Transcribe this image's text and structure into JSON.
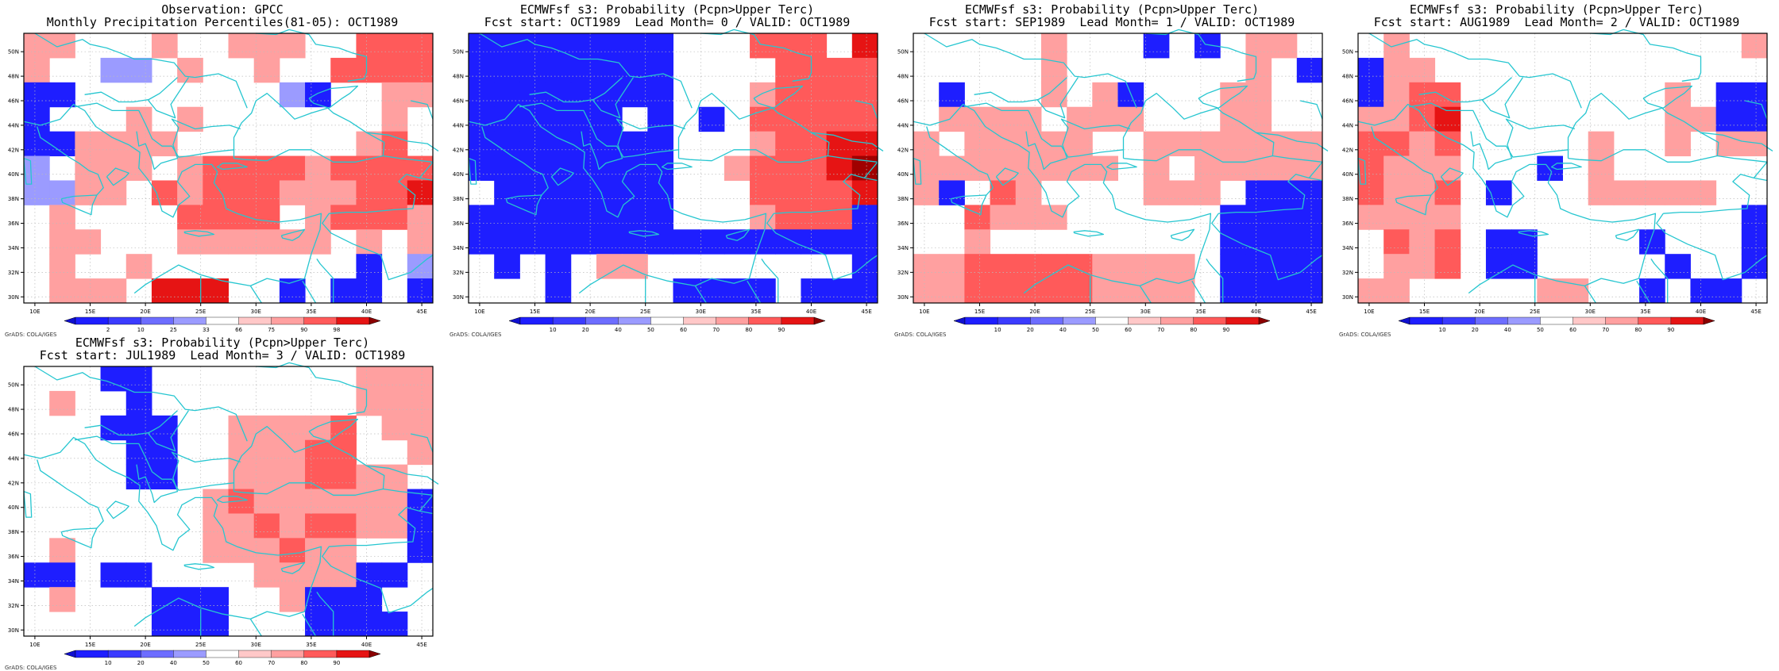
{
  "map_extent": {
    "lon": [
      9,
      46
    ],
    "lat": [
      29.5,
      51.5
    ]
  },
  "lon_ticks": [
    10,
    15,
    20,
    25,
    30,
    35,
    40,
    45
  ],
  "lat_ticks": [
    30,
    32,
    34,
    36,
    38,
    40,
    42,
    44,
    46,
    48,
    50
  ],
  "lon_tick_labels": [
    "10E",
    "15E",
    "20E",
    "25E",
    "30E",
    "35E",
    "40E",
    "45E"
  ],
  "lat_tick_labels": [
    "30N",
    "32N",
    "34N",
    "36N",
    "38N",
    "40N",
    "42N",
    "44N",
    "46N",
    "48N",
    "50N"
  ],
  "color_scale": {
    "blue_dark": "#1e1eff",
    "blue_light": "#9b9bff",
    "red_light": "#ffa0a0",
    "red_mid": "#ff5a5a",
    "red_strong": "#e61414",
    "red_dark": "#a00000"
  },
  "coast_color": "#26c6d0",
  "grads_footer": "GrADS: COLA/IGES",
  "panels": [
    {
      "title_line1": "Observation: GPCC",
      "title_line2": "Monthly Precipitation Percentiles(81-05): OCT1989",
      "colorbar_labels": [
        "2",
        "10",
        "25",
        "33",
        "66",
        "75",
        "90",
        "98"
      ],
      "grid": [
        "rrwwwrwwrrrwwRRR",
        "rwwllwrwwrwwRRRR",
        "ddwwwwwwwwlbwwrr",
        "dwwwrwrwwwwwwwrw",
        "dbrrrrwwwwwwwrRw",
        "lwrrrwrRRRRrRRRR",
        "llrrwRrRRRrrrRRS",
        "wrwwwwRRRRwrRRRr",
        "wrrwwwrrrrrrwrwr",
        "wrwwrwwwwwwwwdwl",
        "wrrrwSSSwwbwbbwd"
      ]
    },
    {
      "title_line1": "ECMWFsf s3: Probability (Pcpn>Upper Terc)",
      "title_line2": "Fcst start: OCT1989  Lead Month= 0 / VALID: OCT1989",
      "colorbar_labels": [
        "10",
        "20",
        "40",
        "50",
        "60",
        "70",
        "80",
        "90"
      ],
      "grid": [
        "bbbbbbbbwwwsRRwS",
        "bbbbbbbbwwwwRRRR",
        "bbbbbbbbwwwrRRRR",
        "bbbbbbwbwbwRRRRR",
        "bbbbbbbbwwwrRRSS",
        "bbbbbbbbwwrRRRSX",
        "wbbbbbbbwwwRRRRS",
        "bbbbbbbbwwwrRRRb",
        "bbbbbbbbbbbbbbbb",
        "wbwbwrrwwwwwwwwb",
        "wwwbwwwwbbbbwbbb"
      ]
    },
    {
      "title_line1": "ECMWFsf s3: Probability (Pcpn>Upper Terc)",
      "title_line2": "Fcst start: SEP1989  Lead Month= 1 / VALID: OCT1989",
      "colorbar_labels": [
        "10",
        "20",
        "40",
        "50",
        "60",
        "70",
        "80",
        "90"
      ],
      "grid": [
        "wwwwwrwwwbwbwrrw",
        "wwwwwrwwwwwwwrwb",
        "wbwwwrwrbwwwrrww",
        "wrrrrwrrrwwwrrww",
        "rwrrrrrwwrrrrrrr",
        "rrrrrrrrwrwrrrrr",
        "rbwRrwwwwrrrwbbb",
        "wwRrrrwwwwwwbbbb",
        "wwrwwwwwwwwwbbbb",
        "rrRRRRRrrrrwbbbb",
        "rrRRRRRrrrrwbbbb"
      ]
    },
    {
      "title_line1": "ECMWFsf s3: Probability (Pcpn>Upper Terc)",
      "title_line2": "Fcst start: AUG1989  Lead Month= 2 / VALID: OCT1989",
      "colorbar_labels": [
        "10",
        "20",
        "40",
        "50",
        "60",
        "70",
        "80",
        "90"
      ],
      "grid": [
        "wrwwwwwwwwwwwwwr",
        "brrwwwwwwwwwwwww",
        "brRRwwwwwwwwrwbb",
        "rrRSwwwwwwwwrrbb",
        "RRrRwwwwwrwwrwrr",
        "Rrrrwwwbwrwwwwww",
        "RrrRwbwwwrrrrrww",
        "rrrrwwwwwwwwwwwb",
        "wRrRwbbwwwwbwwwb",
        "wrrRwbbwwwwwbwwb",
        "rrwwwwwrrwwbwbbw"
      ]
    },
    {
      "title_line1": "ECMWFsf s3: Probability (Pcpn>Upper Terc)",
      "title_line2": "Fcst start: JUL1989  Lead Month= 3 / VALID: OCT1989",
      "colorbar_labels": [
        "10",
        "20",
        "40",
        "50",
        "60",
        "70",
        "80",
        "90"
      ],
      "grid": [
        "wwwbbwwwwwwwwrrr",
        "wrwwbwwwwwwwwrrr",
        "wwwbbbwwrrrrRwrr",
        "wwwwbbwwrrrRRwwr",
        "wwwwbbwwrrrRRrrw",
        "wwwwwwwrRrrrrrrb",
        "wwwwwwwrrRrRRrrb",
        "wrwwwwwrrrRrrwwb",
        "bbwbbwwwwrrrrbbw",
        "wrwwwbbbwwrbbbww",
        "wwwwwbbbwwwbbbbw"
      ]
    }
  ]
}
